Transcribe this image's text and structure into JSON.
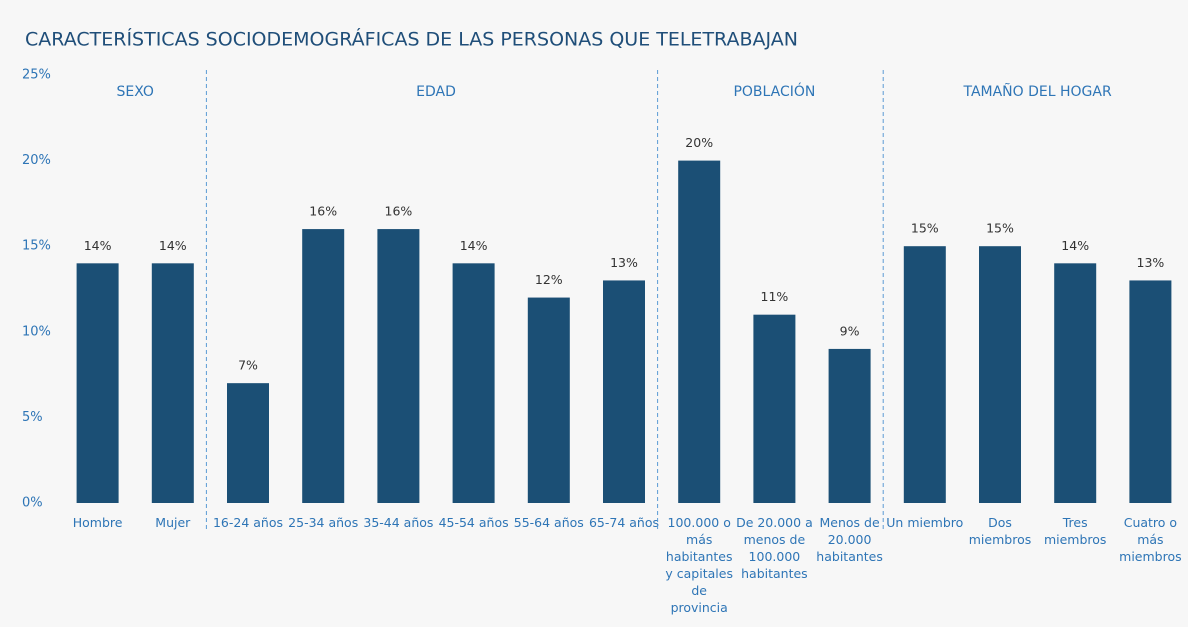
{
  "chart_data": {
    "type": "bar",
    "title": "CARACTERÍSTICAS SOCIODEMOGRÁFICAS DE LAS PERSONAS QUE TELETRABAJAN",
    "color": "#1b4f75",
    "ylim": [
      0,
      25
    ],
    "yticks": [
      {
        "value": 0,
        "label": "0%"
      },
      {
        "value": 5,
        "label": "5%"
      },
      {
        "value": 10,
        "label": "10%"
      },
      {
        "value": 15,
        "label": "15%"
      },
      {
        "value": 20,
        "label": "20%"
      },
      {
        "value": 25,
        "label": "25%"
      }
    ],
    "groups": [
      {
        "name": "SEXO",
        "categories": [
          "Hombre",
          "Mujer"
        ],
        "values": [
          14,
          14
        ],
        "value_labels": [
          "14%",
          "14%"
        ]
      },
      {
        "name": "EDAD",
        "categories": [
          "16-24 años",
          "25-34 años",
          "35-44 años",
          "45-54 años",
          "55-64 años",
          "65-74 años"
        ],
        "values": [
          7,
          16,
          16,
          14,
          12,
          13
        ],
        "value_labels": [
          "7%",
          "16%",
          "16%",
          "14%",
          "12%",
          "13%"
        ]
      },
      {
        "name": "POBLACIÓN",
        "categories": [
          "100.000 o más habitantes y capitales de provincia",
          "De 20.000 a menos de 100.000 habitantes",
          "Menos de 20.000 habitantes"
        ],
        "values": [
          20,
          11,
          9
        ],
        "value_labels": [
          "20%",
          "11%",
          "9%"
        ]
      },
      {
        "name": "TAMAÑO DEL HOGAR",
        "categories": [
          "Un miembro",
          "Dos miembros",
          "Tres miembros",
          "Cuatro o más miembros"
        ],
        "values": [
          15,
          15,
          14,
          13
        ],
        "value_labels": [
          "15%",
          "15%",
          "14%",
          "13%"
        ]
      }
    ]
  }
}
